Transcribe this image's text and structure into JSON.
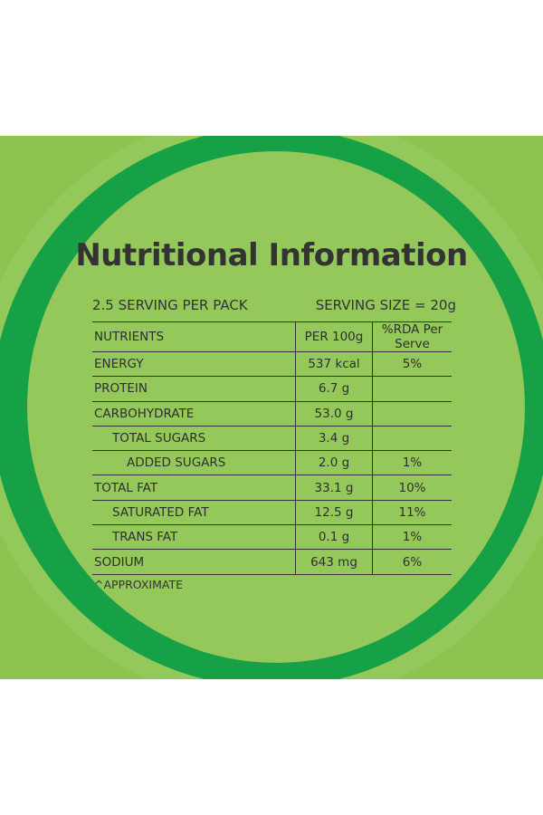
{
  "title": "Nutritional Information",
  "serving_per_pack": "2.5 SERVING PER PACK",
  "serving_size": "SERVING SIZE = 20g",
  "table": {
    "headers": [
      "NUTRIENTS",
      "PER 100g",
      "%RDA Per Serve"
    ],
    "rows": [
      {
        "nutrient": "ENERGY",
        "per100g": "537 kcal",
        "rda": "5%"
      },
      {
        "nutrient": "PROTEIN",
        "per100g": "6.7 g",
        "rda": ""
      },
      {
        "nutrient": "CARBOHYDRATE",
        "per100g": "53.0 g",
        "rda": ""
      },
      {
        "nutrient": "TOTAL SUGARS",
        "per100g": "3.4 g",
        "rda": ""
      },
      {
        "nutrient": "ADDED SUGARS",
        "per100g": "2.0 g",
        "rda": "1%"
      },
      {
        "nutrient": "TOTAL FAT",
        "per100g": "33.1 g",
        "rda": "10%"
      },
      {
        "nutrient": "SATURATED FAT",
        "per100g": "12.5 g",
        "rda": "11%"
      },
      {
        "nutrient": "TRANS FAT",
        "per100g": "0.1 g",
        "rda": "1%"
      },
      {
        "nutrient": "SODIUM",
        "per100g": "643 mg",
        "rda": "6%"
      }
    ]
  },
  "footnote": "^APPROXIMATE",
  "colors": {
    "background_light": "#8dc450",
    "ring_green": "#17a147",
    "text": "#333333"
  }
}
